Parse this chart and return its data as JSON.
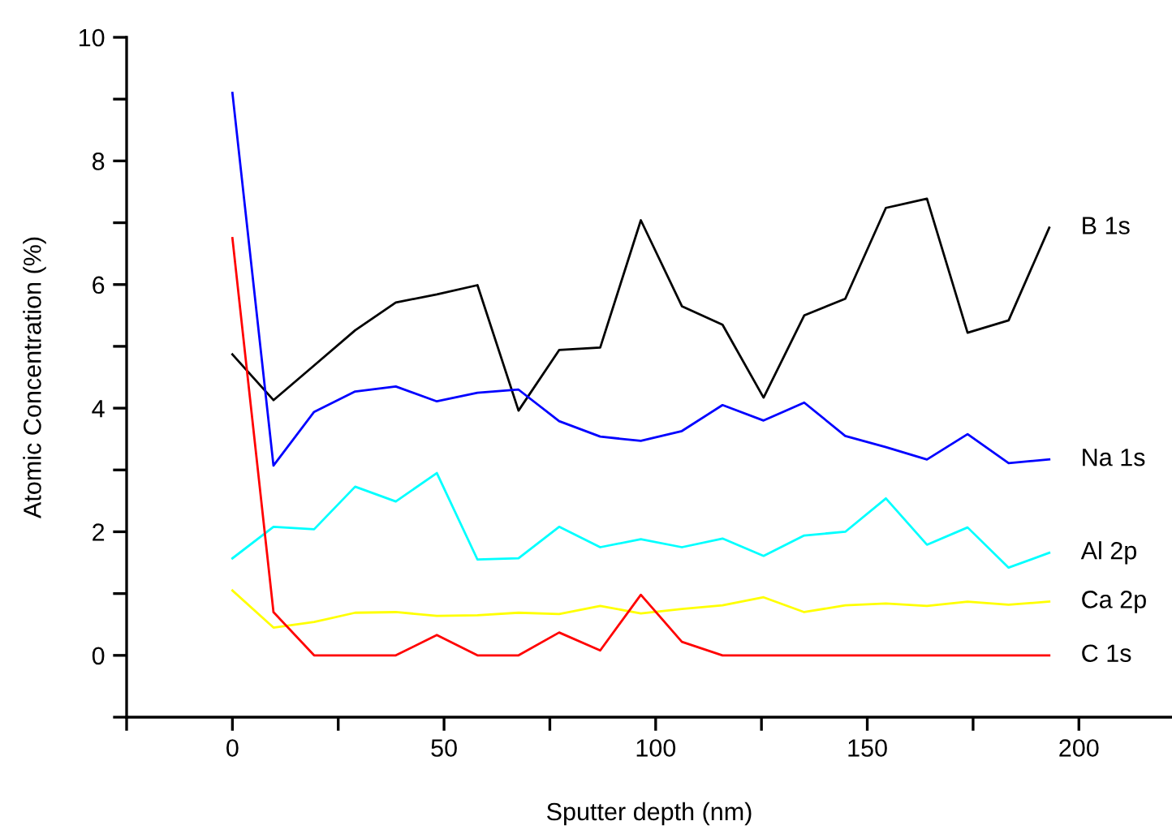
{
  "chart_data": {
    "type": "line",
    "xlabel": "Sputter depth (nm)",
    "ylabel": "Atomic Concentration (%)",
    "x": [
      0,
      9.7,
      19.3,
      29,
      38.6,
      48.3,
      57.9,
      67.6,
      77.2,
      86.9,
      96.5,
      106.2,
      115.8,
      125.5,
      135.1,
      144.8,
      154.4,
      164.1,
      173.7,
      183.4,
      193
    ],
    "series": [
      {
        "name": "B 1s",
        "color": "#000000",
        "values": [
          4.87,
          4.13,
          4.69,
          5.26,
          5.71,
          5.84,
          5.99,
          3.96,
          4.94,
          4.98,
          7.04,
          5.65,
          5.35,
          4.17,
          5.5,
          5.77,
          7.24,
          7.39,
          5.22,
          5.42,
          6.92
        ]
      },
      {
        "name": "Na 1s",
        "color": "#0000ff",
        "values": [
          9.1,
          3.07,
          3.94,
          4.27,
          4.35,
          4.11,
          4.25,
          4.3,
          3.79,
          3.54,
          3.47,
          3.63,
          4.05,
          3.8,
          4.09,
          3.55,
          3.37,
          3.17,
          3.58,
          3.11,
          3.17
        ]
      },
      {
        "name": "Al 2p",
        "color": "#00ffff",
        "values": [
          1.57,
          2.08,
          2.04,
          2.73,
          2.49,
          2.95,
          1.55,
          1.57,
          2.08,
          1.75,
          1.88,
          1.75,
          1.89,
          1.61,
          1.94,
          2.0,
          2.54,
          1.79,
          2.07,
          1.42,
          1.66
        ]
      },
      {
        "name": "Ca 2p",
        "color": "#ffff00",
        "values": [
          1.05,
          0.45,
          0.54,
          0.69,
          0.7,
          0.64,
          0.65,
          0.69,
          0.67,
          0.8,
          0.68,
          0.75,
          0.81,
          0.94,
          0.7,
          0.81,
          0.84,
          0.8,
          0.87,
          0.82,
          0.87
        ]
      },
      {
        "name": "C 1s",
        "color": "#ff0000",
        "values": [
          6.75,
          0.7,
          0,
          0,
          0,
          0.33,
          0,
          0,
          0.37,
          0.08,
          0.98,
          0.22,
          0,
          0,
          0,
          0,
          0,
          0,
          0,
          0,
          0
        ]
      }
    ],
    "xlim": [
      -25,
      222
    ],
    "ylim": [
      -1,
      10
    ],
    "xticks": [
      {
        "value": -25,
        "label": null
      },
      0,
      {
        "value": 25,
        "label": null
      },
      50,
      {
        "value": 75,
        "label": null
      },
      100,
      {
        "value": 125,
        "label": null
      },
      150,
      {
        "value": 175,
        "label": null
      },
      200
    ],
    "yticks": [
      {
        "value": -1,
        "label": null
      },
      0,
      {
        "value": 1,
        "label": null
      },
      2,
      {
        "value": 3,
        "label": null
      },
      4,
      {
        "value": 5,
        "label": null
      },
      6,
      {
        "value": 7,
        "label": null
      },
      8,
      {
        "value": 9,
        "label": null
      },
      10
    ],
    "grid": false,
    "legend": false
  }
}
